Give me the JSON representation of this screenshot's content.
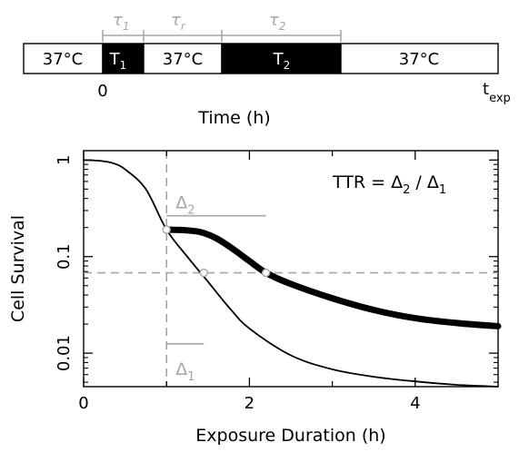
{
  "timeline": {
    "tau_labels": {
      "tau1": "τ",
      "tau1_sub": "1",
      "taur": "τ",
      "taur_sub": "r",
      "tau2": "τ",
      "tau2_sub": "2"
    },
    "segments": [
      {
        "label": "37°C",
        "sub": "",
        "fill": "#ffffff",
        "text_color": "#000000"
      },
      {
        "label": "T",
        "sub": "1",
        "fill": "#000000",
        "text_color": "#ffffff"
      },
      {
        "label": "37°C",
        "sub": "",
        "fill": "#ffffff",
        "text_color": "#000000"
      },
      {
        "label": "T",
        "sub": "2",
        "fill": "#000000",
        "text_color": "#ffffff"
      },
      {
        "label": "37°C",
        "sub": "",
        "fill": "#ffffff",
        "text_color": "#000000"
      }
    ],
    "start_label": "0",
    "end_label": "t",
    "end_label_sub": "exp",
    "axis_label": "Time (h)"
  },
  "chart_data": {
    "type": "line",
    "xlabel": "Exposure Duration (h)",
    "ylabel": "Cell Survival",
    "xlim": [
      0,
      5
    ],
    "ylim": [
      0.0045,
      1.25
    ],
    "log_y": true,
    "x_ticks": [
      0,
      2,
      4
    ],
    "y_ticks": [
      1,
      0.1,
      0.01
    ],
    "x_tick_labels": [
      "0",
      "2",
      "4"
    ],
    "y_tick_labels": [
      "1",
      "0.1",
      "0.01"
    ],
    "series": [
      {
        "style": "thin-black",
        "x": [
          0,
          0.2,
          0.35,
          0.5,
          0.75,
          1.0,
          1.25,
          1.5,
          1.75,
          2.0,
          2.5,
          3.0,
          3.5,
          4.0,
          4.5,
          5.0
        ],
        "y": [
          1.0,
          0.98,
          0.93,
          0.8,
          0.5,
          0.19,
          0.1,
          0.055,
          0.03,
          0.018,
          0.0095,
          0.0068,
          0.0057,
          0.0051,
          0.0047,
          0.0045
        ]
      },
      {
        "style": "thick-black",
        "x": [
          1.0,
          1.2,
          1.4,
          1.6,
          1.8,
          2.0,
          2.2,
          2.5,
          3.0,
          3.5,
          4.0,
          4.5,
          5.0
        ],
        "y": [
          0.19,
          0.188,
          0.18,
          0.155,
          0.12,
          0.09,
          0.068,
          0.052,
          0.037,
          0.028,
          0.023,
          0.0205,
          0.019
        ]
      }
    ],
    "reference_lines": [
      {
        "orientation": "vertical",
        "x": 1.0,
        "style": "dashed-gray"
      },
      {
        "orientation": "horizontal",
        "y": 0.068,
        "style": "dashed-gray"
      }
    ],
    "markers": [
      {
        "x": 1.0,
        "y": 0.19
      },
      {
        "x": 1.45,
        "y": 0.068
      },
      {
        "x": 2.2,
        "y": 0.068
      }
    ],
    "annotations": {
      "ttr_label": "TTR = Δ",
      "ttr_sub2": "2",
      "ttr_mid": " / Δ",
      "ttr_sub1": "1",
      "delta2": "Δ",
      "delta2_sub": "2",
      "delta2_span": [
        1.0,
        2.2
      ],
      "delta2_y": 0.265,
      "delta1": "Δ",
      "delta1_sub": "1",
      "delta1_span": [
        1.0,
        1.45
      ],
      "delta1_y": 0.0125
    },
    "colors": {
      "accent_gray": "#a6a6a6",
      "line": "#000000"
    }
  }
}
